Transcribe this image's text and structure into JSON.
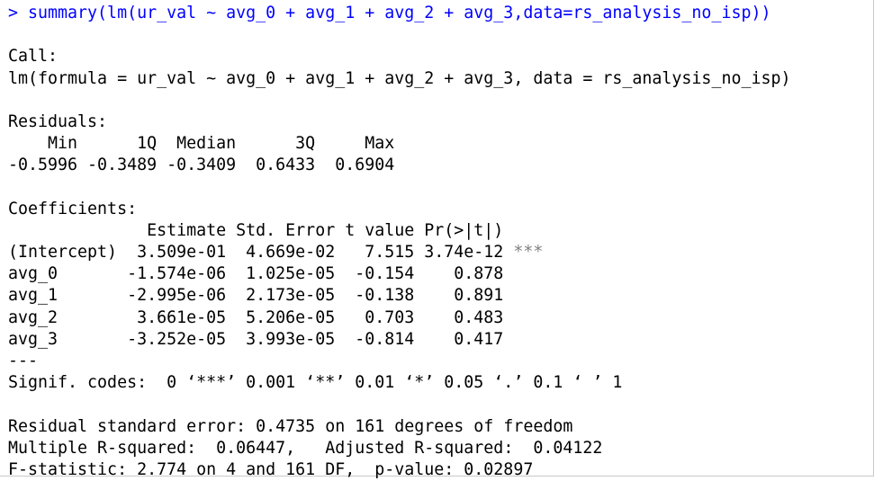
{
  "console": {
    "input_line": "> summary(lm(ur_val ~ avg_0 + avg_1 + avg_2 + avg_3,data=rs_analysis_no_isp))",
    "output_lines": [
      "",
      "Call:",
      "lm(formula = ur_val ~ avg_0 + avg_1 + avg_2 + avg_3, data = rs_analysis_no_isp)",
      "",
      "Residuals:",
      "    Min      1Q  Median      3Q     Max ",
      "-0.5996 -0.3489 -0.3409  0.6433  0.6904 ",
      "",
      "Coefficients:",
      "              Estimate Std. Error t value Pr(>|t|)    ",
      "(Intercept)  3.509e-01  4.669e-02   7.515 3.74e-12 ",
      "avg_0       -1.574e-06  1.025e-05  -0.154    0.878    ",
      "avg_1       -2.995e-06  2.173e-05  -0.138    0.891    ",
      "avg_2        3.661e-05  5.206e-05   0.703    0.483    ",
      "avg_3       -3.252e-05  3.993e-05  -0.814    0.417    ",
      "---",
      "Signif. codes:  0 ‘***’ 0.001 ‘**’ 0.01 ‘*’ 0.05 ‘.’ 0.1 ‘ ’ 1",
      "",
      "Residual standard error: 0.4735 on 161 degrees of freedom",
      "Multiple R-squared:  0.06447,\tAdjusted R-squared:  0.04122 ",
      "F-statistic: 2.774 on 4 and 161 DF,  p-value: 0.02897"
    ],
    "intercept_significance": "***"
  },
  "colors": {
    "prompt": "#0000ff",
    "output": "#000000",
    "background": "#ffffff"
  }
}
